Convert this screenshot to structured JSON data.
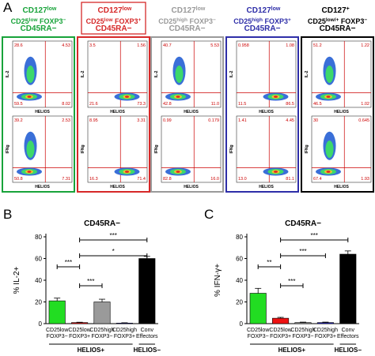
{
  "panel_letters": {
    "a": "A",
    "b": "B",
    "c": "C"
  },
  "colors": {
    "green": "#18a33a",
    "red": "#d62828",
    "grey": "#9a9a9a",
    "blue": "#2e2ea8",
    "black": "#000000"
  },
  "columns": [
    {
      "line1": "CD127low",
      "line2": "CD25low FOXP3−",
      "line3": "CD45RA−",
      "color": "#18a33a",
      "il2": {
        "tl": "28.6",
        "tr": "4.53",
        "bl": "59.5",
        "br": "8.02"
      },
      "ifng": {
        "tl": "39.2",
        "tr": "2.53",
        "bl": "50.8",
        "br": "7.31"
      }
    },
    {
      "line1": "CD127low",
      "line2": "CD25low FOXP3+",
      "line3": "CD45RA−",
      "color": "#d62828",
      "il2": {
        "tl": "3.5",
        "tr": "1.56",
        "bl": "21.6",
        "br": "73.3"
      },
      "ifng": {
        "tl": "8.95",
        "tr": "3.31",
        "bl": "16.3",
        "br": "71.4"
      }
    },
    {
      "line1": "CD127low",
      "line2": "CD25high FOXP3−",
      "line3": "CD45RA−",
      "color": "#9a9a9a",
      "il2": {
        "tl": "40.7",
        "tr": "5.53",
        "bl": "42.8",
        "br": "11.0"
      },
      "ifng": {
        "tl": "0.99",
        "tr": "0.179",
        "bl": "82.8",
        "br": "16.0"
      }
    },
    {
      "line1": "CD127low",
      "line2": "CD25high FOXP3+",
      "line3": "CD45RA−",
      "color": "#2e2ea8",
      "il2": {
        "tl": "0.958",
        "tr": "1.08",
        "bl": "11.5",
        "br": "86.5"
      },
      "ifng": {
        "tl": "1.41",
        "tr": "4.45",
        "bl": "13.0",
        "br": "81.1"
      }
    },
    {
      "line1": "CD127+",
      "line2": "CD25low/+ FOXP3−",
      "line3": "CD45RA−",
      "color": "#000000",
      "il2": {
        "tl": "51.2",
        "tr": "1.22",
        "bl": "46.5",
        "br": "1.02"
      },
      "ifng": {
        "tl": "30",
        "tr": "0.645",
        "bl": "67.4",
        "br": "1.93"
      }
    }
  ],
  "flow_axes": {
    "row1_y": "IL-2",
    "row2_y": "IFNg",
    "x": "HELIOS"
  },
  "chart_data": [
    {
      "type": "bar",
      "panel": "B",
      "title": "CD45RA−",
      "ylabel": "% IL-2+",
      "ylim": [
        0,
        80
      ],
      "yticks": [
        "0",
        "20",
        "40",
        "60",
        "80"
      ],
      "categories": [
        "CD25low FOXP3−",
        "CD25low FOXP3+",
        "CD25high FOXP3−",
        "CD25high FOXP3+",
        "Conv Effectors"
      ],
      "values": [
        21,
        1,
        20,
        0.5,
        60
      ],
      "errors": [
        2.5,
        0.3,
        2.5,
        0.3,
        2
      ],
      "bar_colors": [
        "#22dd22",
        "#ee1111",
        "#9a9a9a",
        "#2222cc",
        "#000000"
      ],
      "significance": [
        {
          "from": 0,
          "to": 1,
          "label": "***"
        },
        {
          "from": 1,
          "to": 2,
          "label": "***"
        },
        {
          "from": 1,
          "to": 4,
          "label": "*"
        },
        {
          "from": 1,
          "to": 4,
          "label": "***"
        }
      ],
      "group_labels": [
        {
          "label": "HELIOS+",
          "from": 0,
          "to": 3
        },
        {
          "label": "HELIOS−",
          "from": 4,
          "to": 4
        }
      ]
    },
    {
      "type": "bar",
      "panel": "C",
      "title": "CD45RA−",
      "ylabel": "% IFN-γ+",
      "ylim": [
        0,
        80
      ],
      "yticks": [
        "0",
        "20",
        "40",
        "60",
        "80"
      ],
      "categories": [
        "CD25low FOXP3−",
        "CD25low FOXP3+",
        "CD25high FOXP3−",
        "CD25high FOXP3+",
        "Conv Effectors"
      ],
      "values": [
        28,
        5,
        1,
        1,
        64
      ],
      "errors": [
        4.5,
        0.8,
        0.4,
        0.4,
        3
      ],
      "bar_colors": [
        "#22dd22",
        "#ee1111",
        "#9a9a9a",
        "#2222cc",
        "#000000"
      ],
      "significance": [
        {
          "from": 0,
          "to": 1,
          "label": "**"
        },
        {
          "from": 1,
          "to": 2,
          "label": "***"
        },
        {
          "from": 1,
          "to": 3,
          "label": "***"
        },
        {
          "from": 1,
          "to": 4,
          "label": "***"
        }
      ],
      "group_labels": [
        {
          "label": "HELIOS+",
          "from": 0,
          "to": 3
        },
        {
          "label": "HELIOS−",
          "from": 4,
          "to": 4
        }
      ]
    }
  ]
}
